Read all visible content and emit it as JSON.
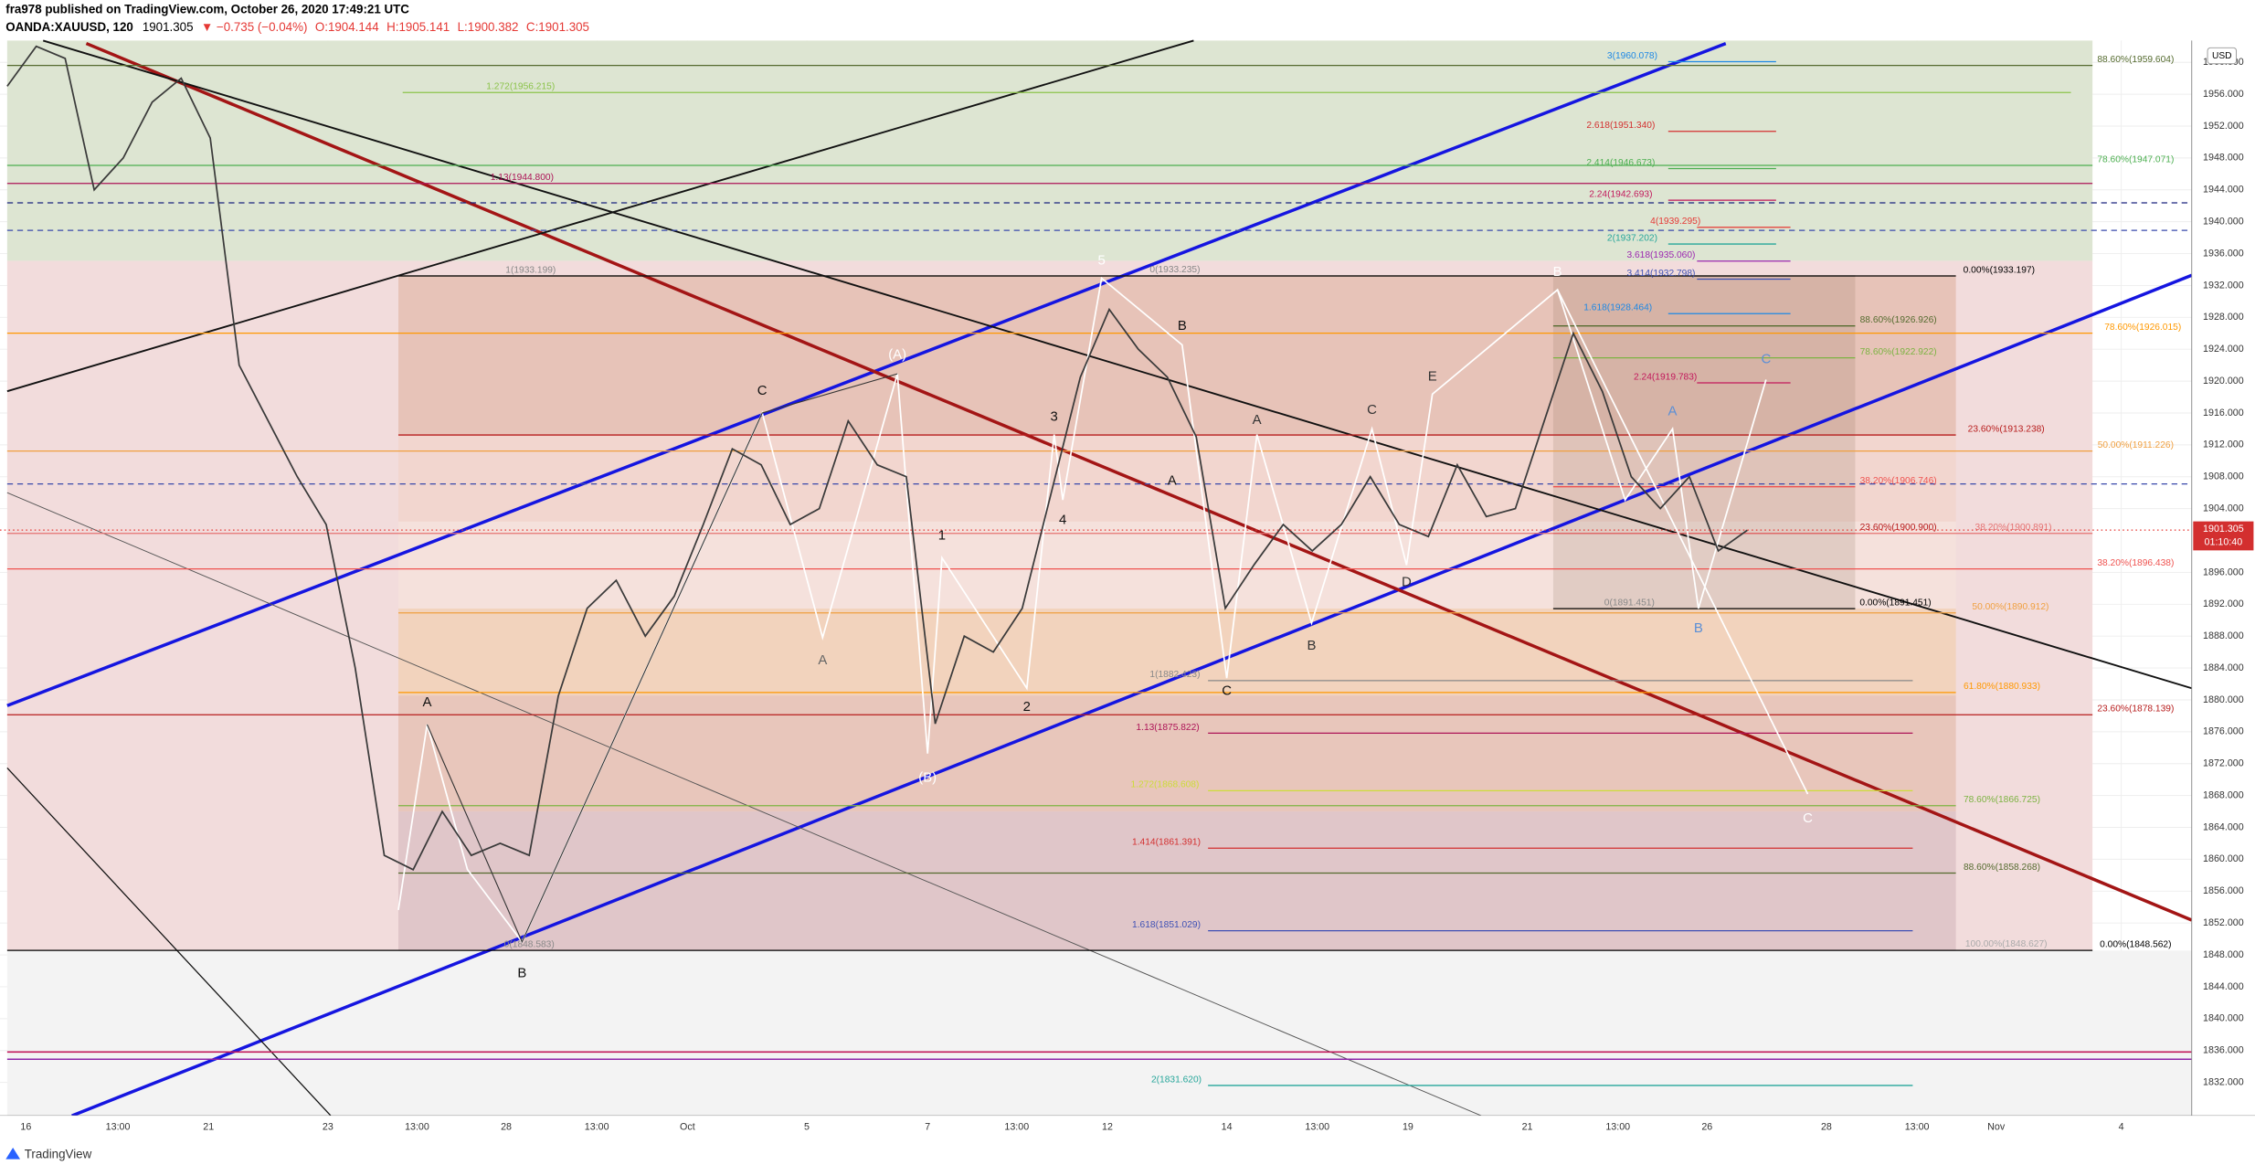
{
  "header": {
    "author_line": "fra978 published on TradingView.com, October 26, 2020 17:49:21 UTC",
    "symbol": "OANDA:XAUUSD, 120",
    "change": "▼ −0.735 (−0.04%)",
    "open": "O:1904.144",
    "high": "H:1905.141",
    "low": "L:1900.382",
    "close": "C:1901.305"
  },
  "footer": {
    "brand": "TradingView"
  },
  "chart_data": {
    "type": "line",
    "currency": "USD",
    "last_price": 1901.305,
    "countdown": "01:10:40",
    "ylim": [
      1827.82,
      1962.73
    ],
    "yticks": [
      {
        "value": 1960,
        "label": "1960.000"
      },
      {
        "value": 1956,
        "label": "1956.000"
      },
      {
        "value": 1952,
        "label": "1952.000"
      },
      {
        "value": 1948,
        "label": "1948.000"
      },
      {
        "value": 1944,
        "label": "1944.000"
      },
      {
        "value": 1940,
        "label": "1940.000"
      },
      {
        "value": 1936,
        "label": "1936.000"
      },
      {
        "value": 1932,
        "label": "1932.000"
      },
      {
        "value": 1928,
        "label": "1928.000"
      },
      {
        "value": 1924,
        "label": "1924.000"
      },
      {
        "value": 1920,
        "label": "1920.000"
      },
      {
        "value": 1916,
        "label": "1916.000"
      },
      {
        "value": 1912,
        "label": "1912.000"
      },
      {
        "value": 1908,
        "label": "1908.000"
      },
      {
        "value": 1904,
        "label": "1904.000"
      },
      {
        "value": 1896,
        "label": "1896.000"
      },
      {
        "value": 1892,
        "label": "1892.000"
      },
      {
        "value": 1888,
        "label": "1888.000"
      },
      {
        "value": 1884,
        "label": "1884.000"
      },
      {
        "value": 1880,
        "label": "1880.000"
      },
      {
        "value": 1876,
        "label": "1876.000"
      },
      {
        "value": 1872,
        "label": "1872.000"
      },
      {
        "value": 1868,
        "label": "1868.000"
      },
      {
        "value": 1864,
        "label": "1864.000"
      },
      {
        "value": 1860,
        "label": "1860.000"
      },
      {
        "value": 1856,
        "label": "1856.000"
      },
      {
        "value": 1852,
        "label": "1852.000"
      },
      {
        "value": 1848,
        "label": "1848.000"
      },
      {
        "value": 1844,
        "label": "1844.000"
      },
      {
        "value": 1840,
        "label": "1840.000"
      },
      {
        "value": 1836,
        "label": "1836.000"
      },
      {
        "value": 1832,
        "label": "1832.000"
      }
    ],
    "time_labels": [
      "16",
      "13:00",
      "21",
      "23",
      "13:00",
      "28",
      "13:00",
      "Oct",
      "5",
      "7",
      "13:00",
      "12",
      "14",
      "13:00",
      "19",
      "21",
      "13:00",
      "26",
      "28",
      "13:00",
      "Nov",
      "4"
    ],
    "series": [
      {
        "name": "XAUUSD",
        "color": "#3a3a3a",
        "values": [
          1957,
          1962,
          1960.5,
          1944,
          1948,
          1955,
          1958,
          1950.5,
          1922,
          1915,
          1908,
          1902,
          1884,
          1860.5,
          1858.7,
          1866,
          1860.5,
          1862,
          1860.5,
          1880.5,
          1891.5,
          1895,
          1888,
          1893,
          1902,
          1911.5,
          1909.5,
          1902,
          1904,
          1915,
          1909.5,
          1908,
          1877,
          1888,
          1886,
          1891.5,
          1906,
          1920.5,
          1929,
          1924,
          1920.5,
          1913,
          1891.5,
          1897,
          1902,
          1898.7,
          1902,
          1908,
          1902,
          1900.5,
          1909.5,
          1903,
          1904,
          1915,
          1926,
          1918.7,
          1908,
          1904,
          1908,
          1898.7,
          1901.3
        ]
      }
    ],
    "levels": [
      {
        "label": "88.60%(1959.604)",
        "price": 1959.604,
        "color": "#556b2f"
      },
      {
        "label": "1.272(1956.215)",
        "price": 1956.215,
        "color": "#8bc34a"
      },
      {
        "label": "3(1960.078)",
        "price": 1960.078,
        "color": "#1e88e5"
      },
      {
        "label": "2.618(1951.340)",
        "price": 1951.34,
        "color": "#d32f2f"
      },
      {
        "label": "78.60%(1947.071)",
        "price": 1947.071,
        "color": "#4caf50"
      },
      {
        "label": "2.414(1946.673)",
        "price": 1946.673,
        "color": "#4caf50"
      },
      {
        "label": "1.13(1944.800)",
        "price": 1944.8,
        "color": "#ad1457"
      },
      {
        "label": "2.24(1942.693)",
        "price": 1942.693,
        "color": "#c2185b"
      },
      {
        "label": "4(1939.295)",
        "price": 1939.295,
        "color": "#e53935"
      },
      {
        "label": "2(1937.202)",
        "price": 1937.202,
        "color": "#26a69a"
      },
      {
        "label": "3.618(1935.060)",
        "price": 1935.06,
        "color": "#9c27b0"
      },
      {
        "label": "1(1933.199)",
        "price": 1933.199,
        "color": "#888888"
      },
      {
        "label": "0(1933.235)",
        "price": 1933.235,
        "color": "#888888"
      },
      {
        "label": "0.00%(1933.197)",
        "price": 1933.197,
        "color": "#000000"
      },
      {
        "label": "3.414(1932.798)",
        "price": 1932.798,
        "color": "#3f51b5"
      },
      {
        "label": "1.618(1928.464)",
        "price": 1928.464,
        "color": "#1e88e5"
      },
      {
        "label": "88.60%(1926.926)",
        "price": 1926.926,
        "color": "#556b2f"
      },
      {
        "label": "78.60%(1926.015)",
        "price": 1926.015,
        "color": "#ff9800"
      },
      {
        "label": "78.60%(1922.922)",
        "price": 1922.922,
        "color": "#7cb342"
      },
      {
        "label": "2.24(1919.783)",
        "price": 1919.783,
        "color": "#c2185b"
      },
      {
        "label": "23.60%(1913.238)",
        "price": 1913.238,
        "color": "#b71c1c"
      },
      {
        "label": "50.00%(1911.226)",
        "price": 1911.226,
        "color": "#f0a040"
      },
      {
        "label": "38.20%(1906.746)",
        "price": 1906.746,
        "color": "#ef5350"
      },
      {
        "label": "23.60%(1900.900)",
        "price": 1900.9,
        "color": "#b71c1c"
      },
      {
        "label": "38.20%(1900.891)",
        "price": 1900.891,
        "color": "#e57373"
      },
      {
        "label": "38.20%(1896.438)",
        "price": 1896.438,
        "color": "#ef5350"
      },
      {
        "label": "0.00%(1891.451)",
        "price": 1891.451,
        "color": "#000000"
      },
      {
        "label": "0(1891.451)",
        "price": 1891.451,
        "color": "#888888"
      },
      {
        "label": "50.00%(1890.912)",
        "price": 1890.912,
        "color": "#f0a040"
      },
      {
        "label": "1(1882.423)",
        "price": 1882.423,
        "color": "#888888"
      },
      {
        "label": "61.80%(1880.933)",
        "price": 1880.933,
        "color": "#ff9800"
      },
      {
        "label": "23.60%(1878.139)",
        "price": 1878.139,
        "color": "#b71c1c"
      },
      {
        "label": "1.13(1875.822)",
        "price": 1875.822,
        "color": "#ad1457"
      },
      {
        "label": "1.272(1868.608)",
        "price": 1868.608,
        "color": "#cddc39"
      },
      {
        "label": "78.60%(1866.725)",
        "price": 1866.725,
        "color": "#7cb342"
      },
      {
        "label": "1.414(1861.391)",
        "price": 1861.391,
        "color": "#d32f2f"
      },
      {
        "label": "88.60%(1858.268)",
        "price": 1858.268,
        "color": "#556b2f"
      },
      {
        "label": "1.618(1851.029)",
        "price": 1851.029,
        "color": "#3f51b5"
      },
      {
        "label": "100.00%(1848.627)",
        "price": 1848.627,
        "color": "#aaaaaa"
      },
      {
        "label": "0.00%(1848.562)",
        "price": 1848.562,
        "color": "#000000"
      },
      {
        "label": "0(1848.583)",
        "price": 1848.583,
        "color": "#888888"
      },
      {
        "label": "2(1831.620)",
        "price": 1831.62,
        "color": "#26a69a"
      }
    ],
    "wave_labels": [
      "A",
      "B",
      "C",
      "A",
      "(A)",
      "(B)",
      "1",
      "2",
      "3",
      "4",
      "5",
      "B",
      "A",
      "C",
      "A",
      "B",
      "C",
      "E",
      "D",
      "B",
      "A",
      "B",
      "C",
      "C"
    ]
  }
}
